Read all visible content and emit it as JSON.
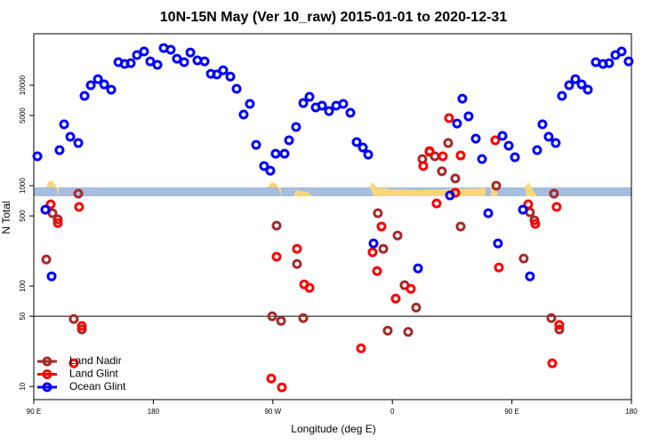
{
  "chart_data": {
    "type": "scatter",
    "title": "10N-15N May (Ver 10_raw)   2015-01-01 to 2020-12-31",
    "x_label": "Longitude (deg E)",
    "y_label": "N Total",
    "log_y": true,
    "hline": 50,
    "legend": "bottom-left",
    "xlim": [
      90,
      540
    ],
    "ylim": [
      7.4,
      32600
    ],
    "xticks": [
      {
        "value": 90,
        "label": "90 E"
      },
      180,
      {
        "value": 270,
        "label": "90 W"
      },
      {
        "value": 360,
        "label": "0"
      },
      {
        "value": 450,
        "label": "90 E"
      },
      {
        "value": 540,
        "label": "180"
      }
    ],
    "yticks": [
      10,
      50,
      100,
      500,
      1000,
      5000,
      10000
    ],
    "series": [
      {
        "name": "Land Nadir",
        "color": "#a52a2a",
        "x": [
          99.4,
          104.1,
          108.1,
          123.5,
          120.1,
          126.2,
          269.5,
          272.8,
          276.2,
          288.2,
          292.9,
          349.1,
          353.2,
          356.5,
          363.9,
          369.2,
          371.9,
          377.9,
          382.6,
          388,
          392,
          397.3,
          402,
          407.4,
          411.4,
          438.2,
          458.9,
          463.6,
          467,
          481.7,
          479.7,
          485.7
        ],
        "values": [
          184,
          532,
          461,
          832,
          47,
          37,
          50,
          400,
          45,
          166,
          48,
          532,
          235,
          36,
          319,
          102,
          35,
          61,
          1840,
          2170,
          1960,
          1390,
          2660,
          1180,
          392,
          1000,
          188,
          543,
          452,
          832,
          48,
          37
        ]
      },
      {
        "name": "Land Glint",
        "color": "#ff0000",
        "x": [
          102.7,
          108.1,
          124.1,
          120.1,
          126.2,
          268.8,
          272.8,
          276.8,
          288.2,
          293.6,
          297.6,
          336.4,
          345.1,
          348.5,
          351.8,
          362.5,
          373.9,
          383.3,
          388,
          393.3,
          398,
          402.7,
          407.4,
          411.4,
          437.5,
          440.2,
          462.3,
          467.6,
          480.4,
          483.7,
          485.7
        ],
        "values": [
          652,
          424,
          614,
          17,
          40,
          12,
          196,
          9.8,
          235,
          104,
          96,
          24,
          217,
          141,
          392,
          75,
          94,
          1570,
          2210,
          665,
          1960,
          4710,
          850,
          2000,
          2830,
          153,
          652,
          416,
          17,
          614,
          41
        ]
      },
      {
        "name": "Ocean Glint",
        "color": "#0000ff",
        "x": [
          92.7,
          98.7,
          103.4,
          109.4,
          112.8,
          117.5,
          123.5,
          128.2,
          132.9,
          138.3,
          143,
          148.3,
          153.7,
          158.4,
          163,
          167.7,
          173,
          177.7,
          183.1,
          187.8,
          193.1,
          197.8,
          203.2,
          207.9,
          213.2,
          218.6,
          223.3,
          227.9,
          232.6,
          238,
          242.7,
          248,
          252.7,
          257.4,
          263.4,
          268.1,
          272.1,
          278.8,
          282.2,
          287.5,
          292.9,
          297.6,
          302.3,
          307,
          312.3,
          317.7,
          323,
          328.4,
          333.1,
          337.8,
          341.8,
          345.8,
          379.3,
          403.4,
          408.7,
          412.7,
          417.4,
          422.8,
          427.5,
          432.2,
          439.5,
          442.9,
          447.6,
          452.3,
          458.3,
          463.6,
          469,
          473,
          477.7,
          483,
          487.7,
          493.1,
          497.8,
          502.5,
          507.2,
          513.2,
          518.6,
          523.2,
          527.9,
          532.6,
          537.9
        ],
        "values": [
          1960,
          577,
          125,
          2260,
          4080,
          3070,
          2660,
          7830,
          10000,
          11500,
          10200,
          9030,
          17000,
          16300,
          16600,
          20000,
          21700,
          17300,
          16000,
          23500,
          22600,
          18400,
          17000,
          21200,
          17700,
          17300,
          13000,
          12800,
          14100,
          12200,
          9220,
          5110,
          6520,
          2550,
          1570,
          1410,
          2080,
          2080,
          2830,
          3840,
          6650,
          7670,
          6010,
          6260,
          5530,
          6260,
          6520,
          5320,
          2720,
          2400,
          2040,
          266,
          150,
          800,
          4160,
          7360,
          4900,
          2940,
          1840,
          532,
          266,
          3130,
          2500,
          1920,
          577,
          125,
          2260,
          4080,
          3070,
          2660,
          7830,
          10000,
          11500,
          10200,
          9030,
          17000,
          16300,
          16600,
          20000,
          21700,
          17300
        ]
      }
    ]
  }
}
